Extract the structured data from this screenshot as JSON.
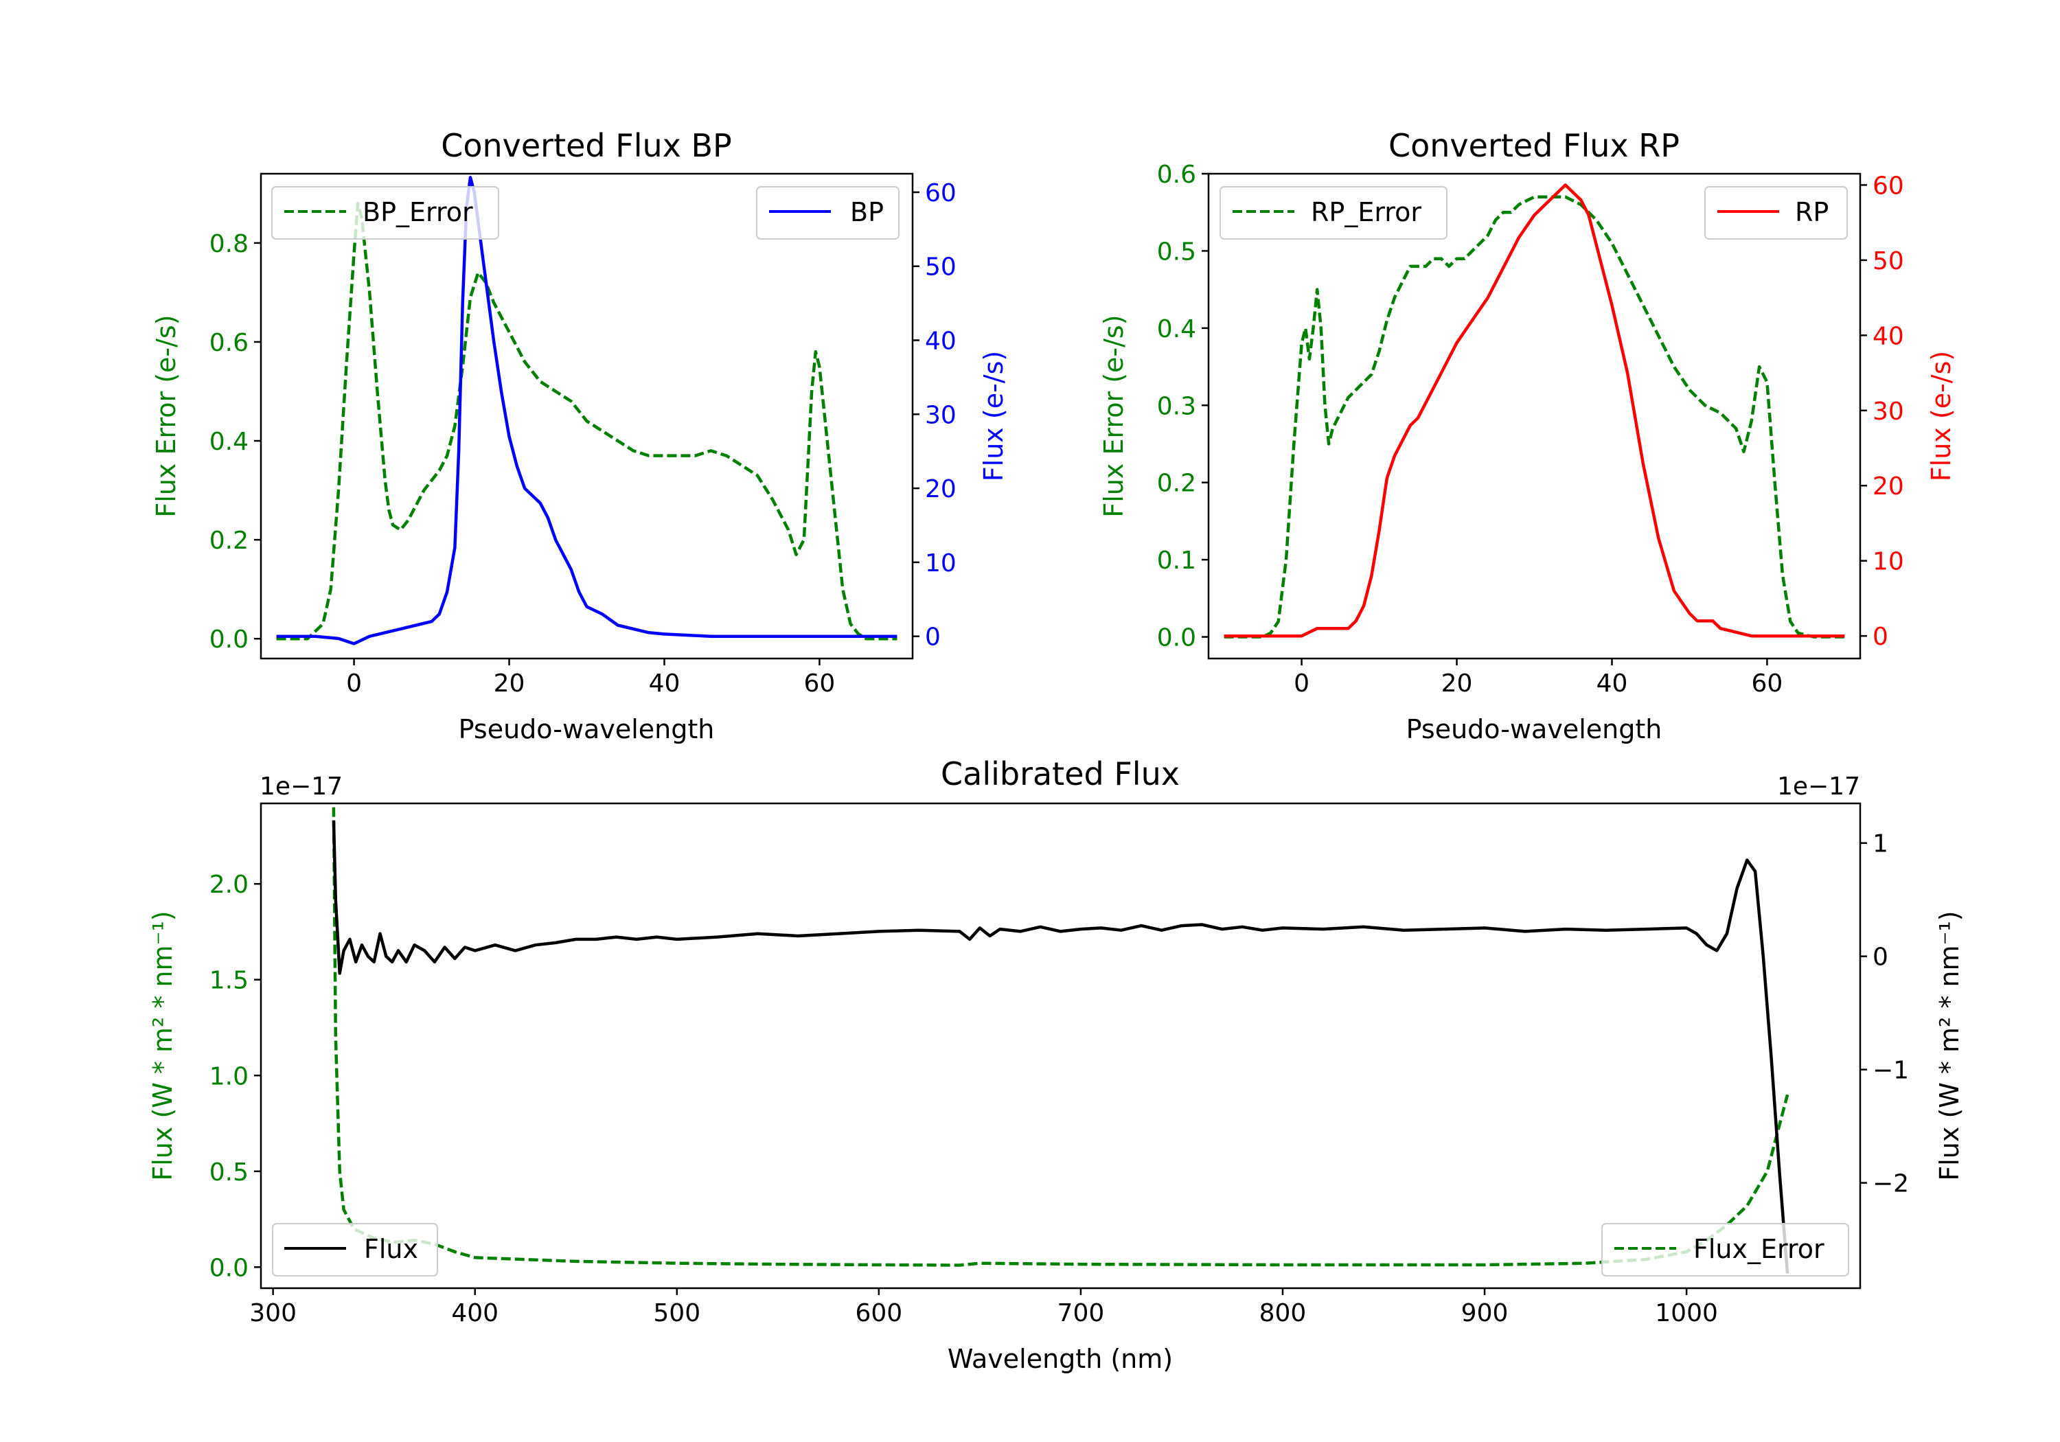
{
  "chart_data": [
    {
      "type": "line",
      "title": "Converted Flux BP",
      "xlabel": "Pseudo-wavelength",
      "ylabel_left": "Flux Error (e-/s)",
      "ylabel_right": "Flux (e-/s)",
      "xlim": [
        -12,
        72
      ],
      "ylim_left": [
        -0.04,
        0.94
      ],
      "ylim_right": [
        -3,
        62.5
      ],
      "xticks": [
        0,
        20,
        40,
        60
      ],
      "yticks_left": [
        0.0,
        0.2,
        0.4,
        0.6,
        0.8
      ],
      "yticks_right": [
        0,
        10,
        20,
        30,
        40,
        50,
        60
      ],
      "left_color": "#008000",
      "right_color": "#0000ff",
      "series": [
        {
          "name": "BP_Error",
          "axis": "left",
          "style": "dashed",
          "color": "#008000",
          "x": [
            -10,
            -6,
            -4,
            -3,
            -2,
            -1,
            0,
            0.5,
            1,
            2,
            3,
            4,
            4.5,
            5,
            6,
            7,
            8,
            9,
            10,
            11,
            12,
            13,
            14,
            15,
            16,
            17,
            18,
            19,
            20,
            22,
            24,
            26,
            28,
            30,
            32,
            34,
            36,
            38,
            40,
            42,
            44,
            46,
            48,
            50,
            52,
            54,
            55,
            56,
            57,
            58,
            58.5,
            59,
            59.5,
            60,
            61,
            62,
            63,
            64,
            65,
            66,
            68,
            70
          ],
          "y": [
            0.0,
            0.0,
            0.03,
            0.1,
            0.3,
            0.55,
            0.78,
            0.88,
            0.85,
            0.7,
            0.5,
            0.32,
            0.26,
            0.23,
            0.22,
            0.24,
            0.27,
            0.3,
            0.32,
            0.34,
            0.37,
            0.43,
            0.55,
            0.69,
            0.74,
            0.72,
            0.68,
            0.65,
            0.62,
            0.56,
            0.52,
            0.5,
            0.48,
            0.44,
            0.42,
            0.4,
            0.38,
            0.37,
            0.37,
            0.37,
            0.37,
            0.38,
            0.37,
            0.35,
            0.33,
            0.28,
            0.25,
            0.22,
            0.17,
            0.2,
            0.35,
            0.5,
            0.58,
            0.55,
            0.4,
            0.25,
            0.1,
            0.03,
            0.01,
            0.0,
            0.0,
            0.0
          ]
        },
        {
          "name": "BP",
          "axis": "right",
          "style": "solid",
          "color": "#0000ff",
          "x": [
            -10,
            -5,
            -2,
            0,
            2,
            4,
            6,
            8,
            10,
            11,
            12,
            13,
            13.5,
            14,
            14.5,
            15,
            15.5,
            16,
            17,
            18,
            19,
            20,
            21,
            22,
            23,
            24,
            25,
            26,
            27,
            28,
            29,
            30,
            32,
            34,
            36,
            38,
            40,
            42,
            44,
            46,
            48,
            50,
            54,
            58,
            62,
            66,
            70
          ],
          "y": [
            0,
            0,
            -0.3,
            -1,
            0,
            0.5,
            1,
            1.5,
            2,
            3,
            6,
            12,
            25,
            45,
            58,
            62,
            60,
            56,
            48,
            40,
            33,
            27,
            23,
            20,
            19,
            18,
            16,
            13,
            11,
            9,
            6,
            4,
            3,
            1.5,
            1,
            0.5,
            0.3,
            0.2,
            0.1,
            0,
            0,
            0,
            0,
            0,
            0,
            0,
            0
          ]
        }
      ],
      "legend": [
        {
          "label": "BP_Error",
          "position": "upper-left"
        },
        {
          "label": "BP",
          "position": "upper-right"
        }
      ]
    },
    {
      "type": "line",
      "title": "Converted Flux RP",
      "xlabel": "Pseudo-wavelength",
      "ylabel_left": "Flux Error (e-/s)",
      "ylabel_right": "Flux (e-/s)",
      "xlim": [
        -12,
        72
      ],
      "ylim_left": [
        -0.028,
        0.6
      ],
      "ylim_right": [
        -3,
        61.5
      ],
      "xticks": [
        0,
        20,
        40,
        60
      ],
      "yticks_left": [
        0.0,
        0.1,
        0.2,
        0.3,
        0.4,
        0.5,
        0.6
      ],
      "yticks_right": [
        0,
        10,
        20,
        30,
        40,
        50,
        60
      ],
      "left_color": "#008000",
      "right_color": "#ff0000",
      "series": [
        {
          "name": "RP_Error",
          "axis": "left",
          "style": "dashed",
          "color": "#008000",
          "x": [
            -10,
            -5,
            -4,
            -3,
            -2,
            -1,
            0,
            0.5,
            1,
            1.5,
            2,
            2.5,
            3,
            3.5,
            4,
            5,
            6,
            7,
            8,
            9,
            10,
            11,
            12,
            13,
            14,
            15,
            16,
            17,
            18,
            19,
            20,
            21,
            22,
            23,
            24,
            25,
            26,
            27,
            28,
            29,
            30,
            32,
            34,
            36,
            38,
            40,
            42,
            44,
            46,
            48,
            50,
            52,
            54,
            56,
            57,
            58,
            59,
            60,
            61,
            62,
            63,
            64,
            66,
            68,
            70
          ],
          "y": [
            0.0,
            0.0,
            0.005,
            0.02,
            0.1,
            0.25,
            0.38,
            0.4,
            0.36,
            0.4,
            0.45,
            0.4,
            0.3,
            0.25,
            0.27,
            0.29,
            0.31,
            0.32,
            0.33,
            0.34,
            0.37,
            0.41,
            0.44,
            0.46,
            0.48,
            0.48,
            0.48,
            0.49,
            0.49,
            0.48,
            0.49,
            0.49,
            0.5,
            0.51,
            0.52,
            0.54,
            0.55,
            0.55,
            0.56,
            0.565,
            0.57,
            0.57,
            0.57,
            0.56,
            0.54,
            0.51,
            0.47,
            0.43,
            0.39,
            0.35,
            0.32,
            0.3,
            0.29,
            0.27,
            0.24,
            0.28,
            0.35,
            0.33,
            0.2,
            0.08,
            0.02,
            0.005,
            0.0,
            0.0,
            0.0
          ]
        },
        {
          "name": "RP",
          "axis": "right",
          "style": "solid",
          "color": "#ff0000",
          "x": [
            -10,
            -4,
            0,
            2,
            4,
            6,
            7,
            8,
            9,
            10,
            11,
            12,
            13,
            14,
            15,
            16,
            17,
            18,
            20,
            22,
            24,
            26,
            28,
            30,
            32,
            34,
            35,
            36,
            37,
            38,
            40,
            42,
            44,
            46,
            48,
            50,
            51,
            52,
            53,
            54,
            56,
            58,
            60,
            62,
            66,
            70
          ],
          "y": [
            0,
            0,
            0,
            1,
            1,
            1,
            2,
            4,
            8,
            14,
            21,
            24,
            26,
            28,
            29,
            31,
            33,
            35,
            39,
            42,
            45,
            49,
            53,
            56,
            58,
            60,
            59,
            58,
            56,
            52,
            44,
            35,
            23,
            13,
            6,
            3,
            2,
            2,
            2,
            1,
            0.5,
            0,
            0,
            0,
            0,
            0
          ]
        }
      ],
      "legend": [
        {
          "label": "RP_Error",
          "position": "upper-left"
        },
        {
          "label": "RP",
          "position": "upper-right"
        }
      ]
    },
    {
      "type": "line",
      "title": "Calibrated Flux",
      "xlabel": "Wavelength (nm)",
      "ylabel_left": "Flux (W * m² * nm⁻¹)",
      "ylabel_right": "Flux (W * m² * nm⁻¹)",
      "offset_left": "1e−17",
      "offset_right": "1e−17",
      "xlim": [
        294,
        1086
      ],
      "ylim_left": [
        -0.11,
        2.42
      ],
      "ylim_right": [
        -2.93,
        1.35
      ],
      "xticks": [
        300,
        400,
        500,
        600,
        700,
        800,
        900,
        1000
      ],
      "yticks_left": [
        0.0,
        0.5,
        1.0,
        1.5,
        2.0
      ],
      "yticks_right": [
        -2,
        -1,
        0,
        1
      ],
      "yticklabels_right": [
        "−2",
        "−1",
        "0",
        "1"
      ],
      "left_color": "#008000",
      "right_color": "#000000",
      "series": [
        {
          "name": "Flux_Error",
          "axis": "left",
          "style": "dashed",
          "color": "#008000",
          "x": [
            330,
            331,
            333,
            335,
            340,
            350,
            360,
            370,
            380,
            390,
            400,
            450,
            500,
            550,
            600,
            640,
            650,
            700,
            800,
            900,
            950,
            980,
            1000,
            1010,
            1020,
            1030,
            1040,
            1045,
            1050
          ],
          "y": [
            2.4,
            1.2,
            0.5,
            0.3,
            0.2,
            0.15,
            0.13,
            0.14,
            0.12,
            0.08,
            0.05,
            0.03,
            0.02,
            0.015,
            0.012,
            0.01,
            0.02,
            0.015,
            0.012,
            0.012,
            0.02,
            0.04,
            0.08,
            0.14,
            0.22,
            0.32,
            0.5,
            0.7,
            0.9
          ]
        },
        {
          "name": "Flux",
          "axis": "right",
          "style": "solid",
          "color": "#000000",
          "x": [
            330,
            331,
            333,
            335,
            338,
            341,
            344,
            347,
            350,
            353,
            356,
            359,
            362,
            366,
            370,
            375,
            380,
            385,
            390,
            395,
            400,
            410,
            420,
            430,
            440,
            450,
            460,
            470,
            480,
            490,
            500,
            520,
            540,
            560,
            580,
            600,
            620,
            640,
            645,
            650,
            655,
            660,
            670,
            680,
            690,
            700,
            710,
            720,
            730,
            740,
            750,
            760,
            770,
            780,
            790,
            800,
            820,
            840,
            860,
            880,
            900,
            920,
            940,
            960,
            980,
            1000,
            1005,
            1010,
            1015,
            1020,
            1025,
            1030,
            1034,
            1038,
            1042,
            1046,
            1050
          ],
          "y": [
            1.2,
            0.5,
            -0.15,
            0.05,
            0.15,
            -0.05,
            0.1,
            0.0,
            -0.05,
            0.2,
            0.0,
            -0.05,
            0.05,
            -0.05,
            0.1,
            0.05,
            -0.05,
            0.08,
            -0.02,
            0.08,
            0.05,
            0.1,
            0.05,
            0.1,
            0.12,
            0.15,
            0.15,
            0.17,
            0.15,
            0.17,
            0.15,
            0.17,
            0.2,
            0.18,
            0.2,
            0.22,
            0.23,
            0.22,
            0.15,
            0.25,
            0.18,
            0.24,
            0.22,
            0.26,
            0.22,
            0.24,
            0.25,
            0.23,
            0.27,
            0.23,
            0.27,
            0.28,
            0.24,
            0.26,
            0.23,
            0.25,
            0.24,
            0.26,
            0.23,
            0.24,
            0.25,
            0.22,
            0.24,
            0.23,
            0.24,
            0.25,
            0.2,
            0.1,
            0.05,
            0.2,
            0.6,
            0.85,
            0.75,
            0.0,
            -0.9,
            -1.9,
            -2.8
          ]
        }
      ],
      "legend": [
        {
          "label": "Flux",
          "position": "lower-left"
        },
        {
          "label": "Flux_Error",
          "position": "lower-right"
        }
      ]
    }
  ]
}
